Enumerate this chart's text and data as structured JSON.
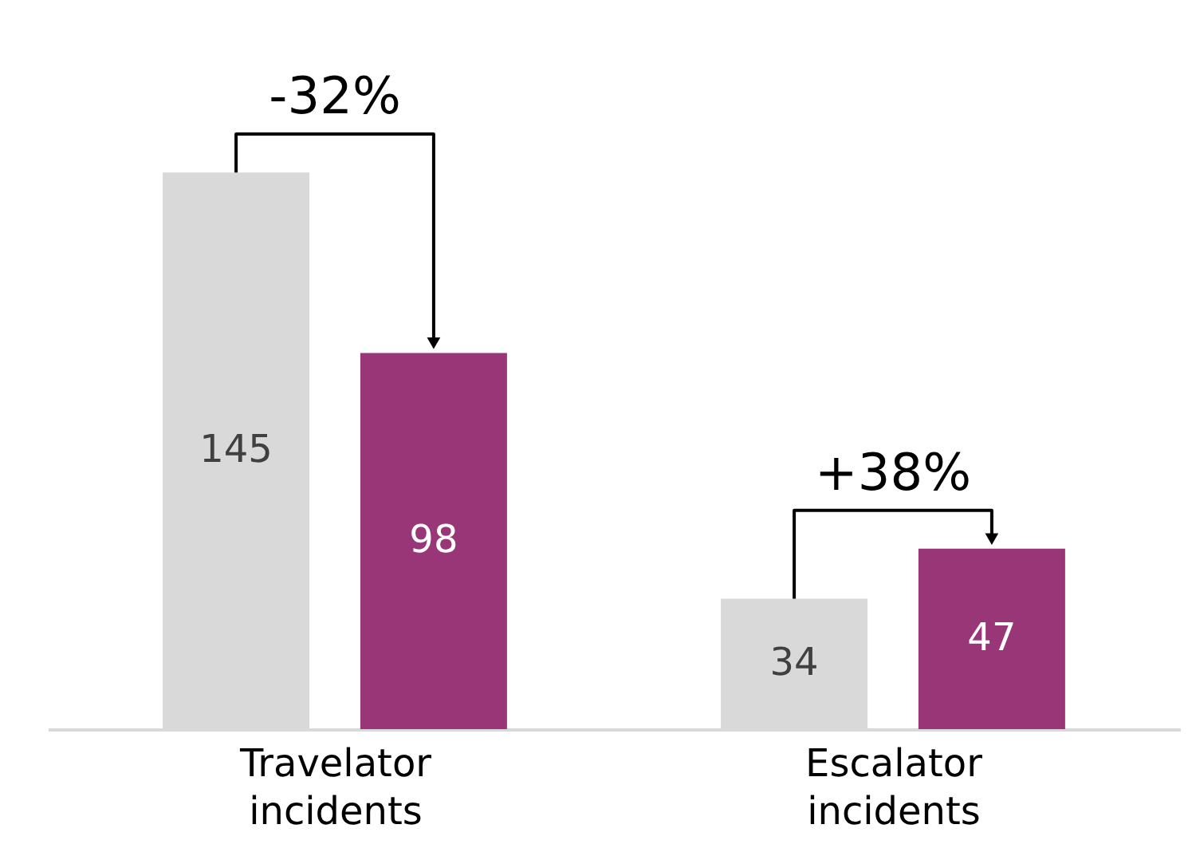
{
  "chart_data": {
    "type": "bar",
    "categories": [
      "Travelator incidents",
      "Escalator incidents"
    ],
    "series": [
      {
        "color": "#d9d9d9",
        "values": [
          145,
          34
        ]
      },
      {
        "color": "#993677",
        "values": [
          98,
          47
        ]
      }
    ],
    "data_labels": true,
    "grid": false,
    "annotations": [
      "-32%",
      "+38%"
    ]
  }
}
